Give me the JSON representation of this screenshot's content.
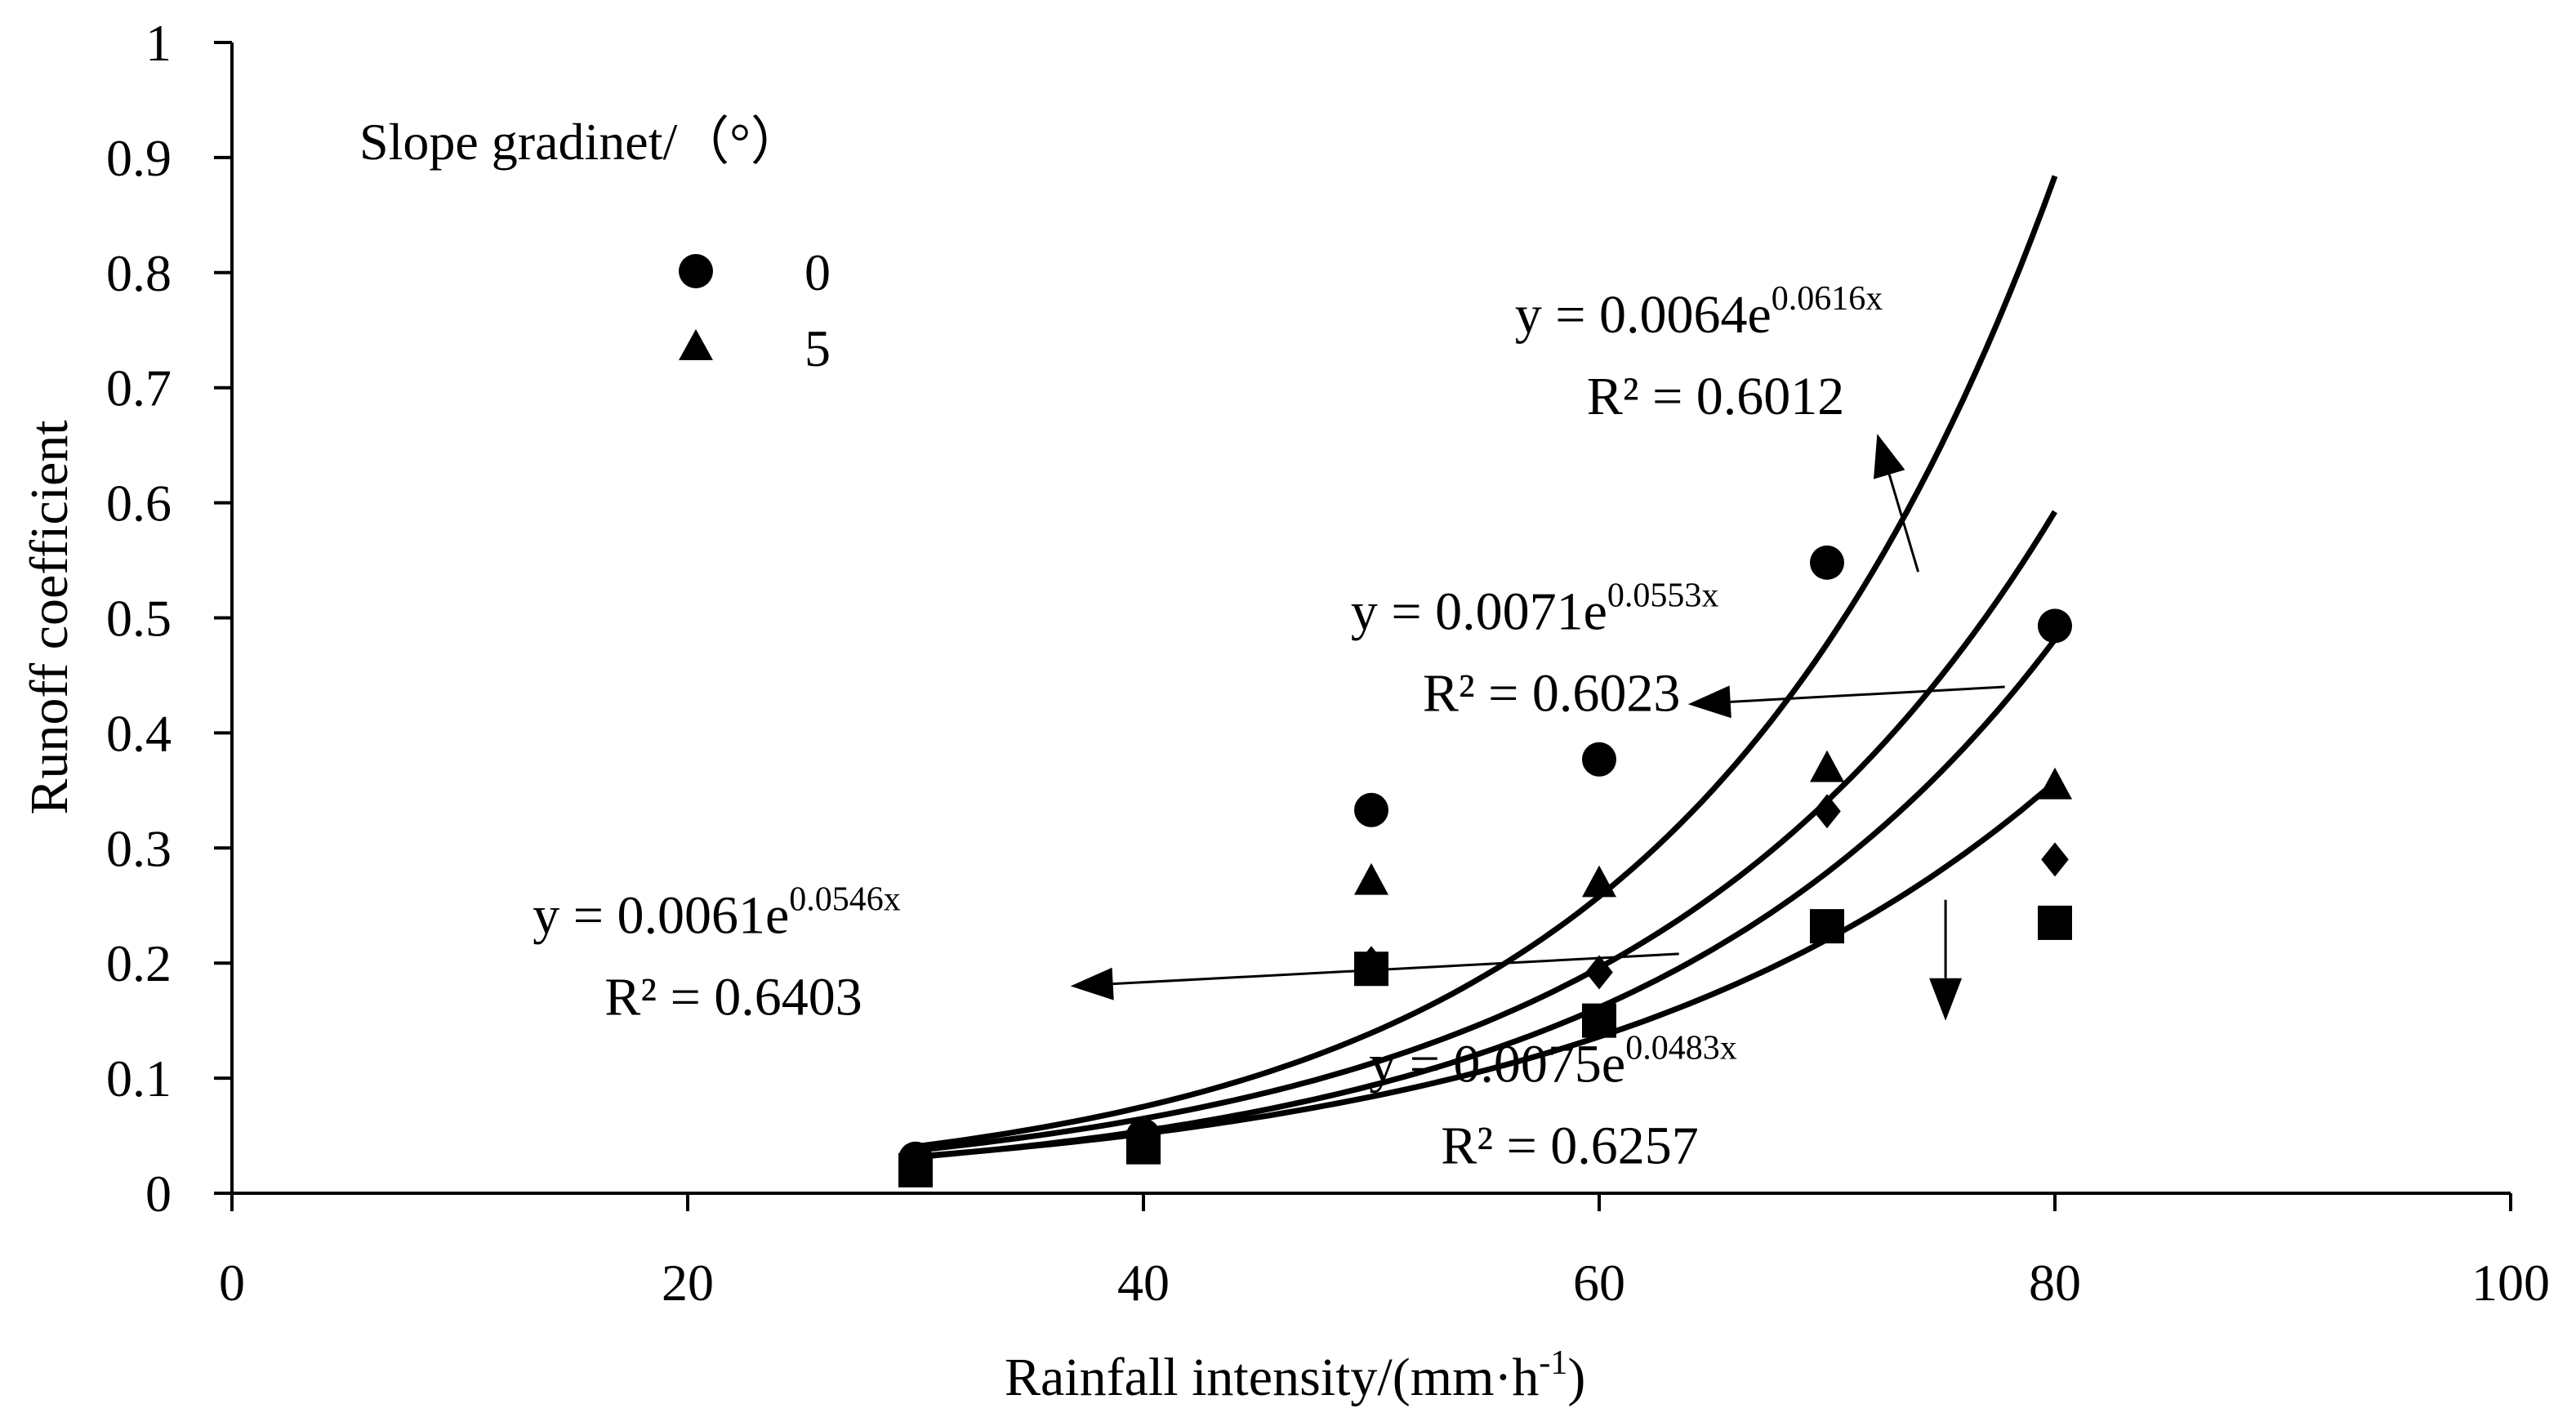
{
  "chart_data": {
    "type": "scatter",
    "title": "",
    "xlabel": "Rainfall intensity/(mm·h",
    "xlabel_sup": "-1",
    "xlabel_tail": ")",
    "ylabel": "Runoff coefficient",
    "xlim": [
      0,
      100
    ],
    "ylim": [
      0,
      1
    ],
    "x_ticks": [
      "0",
      "20",
      "40",
      "60",
      "80",
      "100"
    ],
    "y_ticks": [
      "0",
      "0.1",
      "0.2",
      "0.3",
      "0.4",
      "0.5",
      "0.6",
      "0.7",
      "0.8",
      "0.9",
      "1"
    ],
    "grid": false,
    "legend": {
      "title": "Slope gradinet/（°）",
      "position": "top-left",
      "entries": [
        {
          "label": "0",
          "marker": "circle"
        },
        {
          "label": "5",
          "marker": "triangle"
        }
      ]
    },
    "series": [
      {
        "name": "0",
        "marker": "circle",
        "x": [
          30,
          40,
          50,
          60,
          70,
          80
        ],
        "y": [
          0.03,
          0.05,
          0.333,
          0.377,
          0.548,
          0.493
        ]
      },
      {
        "name": "5",
        "marker": "triangle",
        "x": [
          30,
          40,
          50,
          60,
          70,
          80
        ],
        "y": [
          0.03,
          0.045,
          0.272,
          0.27,
          0.37,
          0.355
        ]
      },
      {
        "name": "diamond-series",
        "marker": "diamond",
        "x": [
          30,
          40,
          50,
          60,
          70,
          80
        ],
        "y": [
          0.025,
          0.04,
          0.2,
          0.192,
          0.332,
          0.29
        ]
      },
      {
        "name": "square-series",
        "marker": "square",
        "x": [
          30,
          40,
          50,
          60,
          70,
          80
        ],
        "y": [
          0.02,
          0.04,
          0.195,
          0.15,
          0.232,
          0.235
        ]
      }
    ],
    "fits": [
      {
        "name": "fit-circle",
        "a": 0.0064,
        "b": 0.0616,
        "x_range": [
          30,
          80
        ],
        "eq_prefix": "y = 0.0064e",
        "eq_exp": "0.0616x",
        "r2": "R² = 0.6012"
      },
      {
        "name": "fit-triangle",
        "a": 0.0071,
        "b": 0.0553,
        "x_range": [
          30,
          80
        ],
        "eq_prefix": "y = 0.0071e",
        "eq_exp": "0.0553x",
        "r2": "R² = 0.6023"
      },
      {
        "name": "fit-diamond",
        "a": 0.0061,
        "b": 0.0546,
        "x_range": [
          30,
          80
        ],
        "eq_prefix": "y = 0.0061e",
        "eq_exp": "0.0546x",
        "r2": "R² = 0.6403"
      },
      {
        "name": "fit-square",
        "a": 0.0075,
        "b": 0.0483,
        "x_range": [
          30,
          80
        ],
        "eq_prefix": "y = 0.0075e",
        "eq_exp": "0.0483x",
        "r2": "R² = 0.6257"
      }
    ],
    "arrows": [
      {
        "name": "arrow-fit-circle",
        "from": [
          74,
          0.54
        ],
        "to": [
          72.2,
          0.66
        ]
      },
      {
        "name": "arrow-fit-triangle",
        "from": [
          77.8,
          0.44
        ],
        "to": [
          63.9,
          0.425
        ]
      },
      {
        "name": "arrow-fit-diamond",
        "from": [
          63.5,
          0.208
        ],
        "to": [
          36.8,
          0.18
        ]
      },
      {
        "name": "arrow-fit-square",
        "from": [
          75.2,
          0.255
        ],
        "to": [
          75.2,
          0.15
        ]
      }
    ],
    "annotation_positions": [
      {
        "x": 56.3,
        "y": 0.748
      },
      {
        "x": 49.1,
        "y": 0.49
      },
      {
        "x": 13.2,
        "y": 0.226
      },
      {
        "x": 49.9,
        "y": 0.097
      }
    ]
  }
}
